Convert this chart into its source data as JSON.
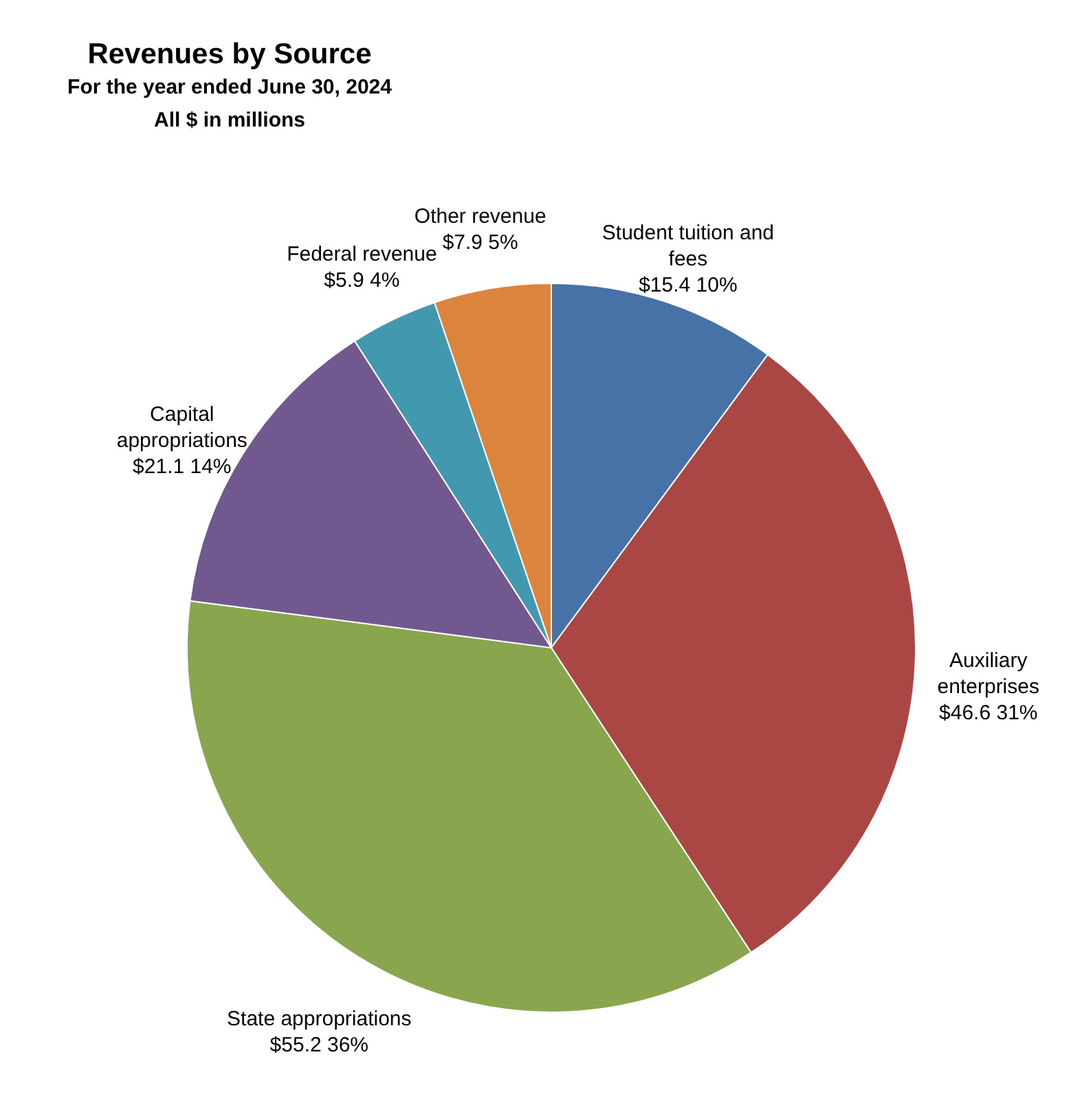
{
  "chart_data": {
    "type": "pie",
    "title": "Revenues by Source",
    "subtitle": "For the year ended June 30, 2024\nAll $ in millions",
    "categories": [
      "Student tuition and fees",
      "Auxiliary enterprises",
      "State appropriations",
      "Capital appropriations",
      "Federal revenue",
      "Other revenue"
    ],
    "values": [
      15.4,
      46.6,
      55.2,
      21.1,
      5.9,
      7.9
    ],
    "colors": [
      "#4672a8",
      "#aa4744",
      "#89a54e",
      "#71588f",
      "#4198af",
      "#db843d"
    ],
    "value_labels": [
      "$15.4  10%",
      "$46.6  31%",
      "$55.2  36%",
      "$21.1  14%",
      "$5.9  4%",
      "$7.9  5%"
    ],
    "legend": false
  }
}
